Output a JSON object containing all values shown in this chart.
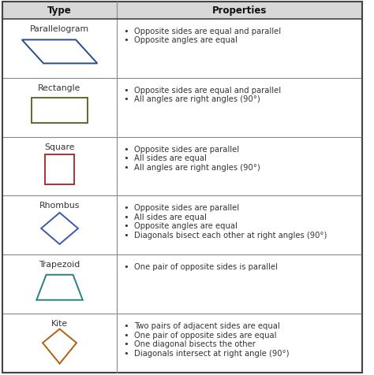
{
  "col1_header": "Type",
  "col2_header": "Properties",
  "rows": [
    {
      "type": "Parallelogram",
      "color": "#2B4B8A",
      "properties": [
        "Opposite sides are equal and parallel",
        "Opposite angles are equal"
      ]
    },
    {
      "type": "Rectangle",
      "color": "#5C6B2E",
      "properties": [
        "Opposite sides are equal and parallel",
        "All angles are right angles (90°)"
      ]
    },
    {
      "type": "Square",
      "color": "#B03030",
      "properties": [
        "Opposite sides are parallel",
        "All sides are equal",
        "All angles are right angles (90°)"
      ]
    },
    {
      "type": "Rhombus",
      "color": "#4455AA",
      "properties": [
        "Opposite sides are parallel",
        "All sides are equal",
        "Opposite angles are equal",
        "Diagonals bisect each other at right angles (90°)"
      ]
    },
    {
      "type": "Trapezoid",
      "color": "#2A8080",
      "properties": [
        "One pair of opposite sides is parallel"
      ]
    },
    {
      "type": "Kite",
      "color": "#B06010",
      "properties": [
        "Two pairs of adjacent sides are equal",
        "One pair of opposite sides are equal",
        "One diagonal bisects the other",
        "Diagonals intersect at right angle (90°)"
      ]
    }
  ],
  "border_color": "#888888",
  "header_border_color": "#555555",
  "text_color": "#333333",
  "font_size": 7.2,
  "header_font_size": 8.5,
  "type_font_size": 7.8
}
